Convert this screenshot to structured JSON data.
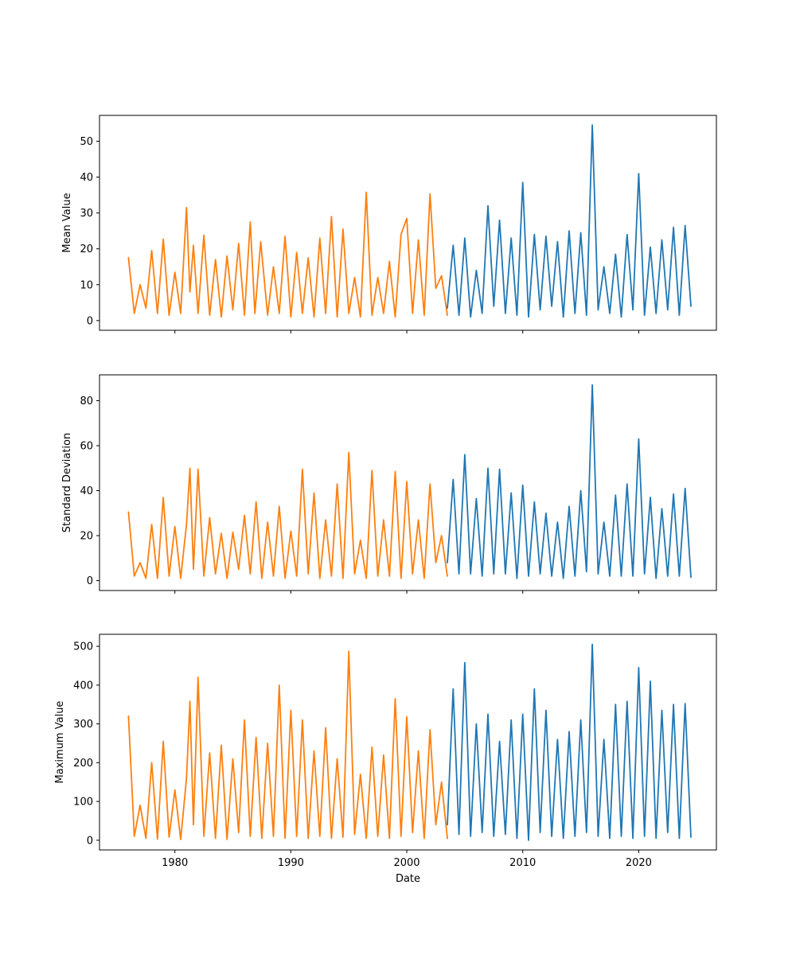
{
  "chart_data": [
    {
      "type": "line",
      "title": "",
      "xlabel": "",
      "ylabel": "Mean Value",
      "xlim": [
        1973.5,
        2026.7
      ],
      "ylim": [
        -2.7,
        57.2
      ],
      "x_ticks": [
        1980,
        1990,
        2000,
        2010,
        2020
      ],
      "x_tick_labels_shown": false,
      "y_ticks": [
        0,
        10,
        20,
        30,
        40,
        50
      ],
      "grid": false,
      "series": [
        {
          "color": "#ff7f0e",
          "x": [
            1976.0,
            1976.5,
            1977.0,
            1977.5,
            1978.0,
            1978.5,
            1979.0,
            1979.5,
            1980.0,
            1980.5,
            1981.0,
            1981.3,
            1981.6,
            1982.0,
            1982.5,
            1983.0,
            1983.5,
            1984.0,
            1984.5,
            1985.0,
            1985.5,
            1986.0,
            1986.5,
            1986.9,
            1987.4,
            1988.0,
            1988.5,
            1989.0,
            1989.5,
            1990.0,
            1990.5,
            1991.0,
            1991.5,
            1992.0,
            1992.5,
            1993.0,
            1993.5,
            1994.0,
            1994.5,
            1995.0,
            1995.5,
            1996.0,
            1996.5,
            1997.0,
            1997.5,
            1998.0,
            1998.5,
            1999.0,
            1999.5,
            2000.0,
            2000.5,
            2001.0,
            2001.5,
            2002.0,
            2002.5,
            2003.0,
            2003.5
          ],
          "y": [
            17.5,
            2.0,
            10.0,
            3.5,
            19.5,
            2.0,
            22.7,
            1.5,
            13.5,
            2.0,
            31.5,
            8.0,
            21.0,
            2.0,
            23.8,
            1.5,
            17.0,
            1.0,
            18.0,
            3.0,
            21.5,
            1.5,
            27.5,
            2.0,
            22.0,
            1.5,
            15.0,
            2.0,
            23.5,
            1.0,
            19.0,
            2.0,
            17.5,
            1.0,
            23.0,
            2.0,
            29.0,
            1.0,
            25.5,
            2.0,
            12.0,
            1.0,
            35.8,
            1.5,
            12.0,
            2.0,
            16.5,
            1.0,
            24.0,
            28.5,
            2.0,
            22.5,
            1.5,
            35.3,
            9.0,
            12.5,
            1.5
          ]
        },
        {
          "color": "#1f77b4",
          "x": [
            2003.5,
            2004.0,
            2004.5,
            2005.0,
            2005.5,
            2006.0,
            2006.5,
            2007.0,
            2007.5,
            2008.0,
            2008.5,
            2009.0,
            2009.5,
            2010.0,
            2010.5,
            2011.0,
            2011.5,
            2012.0,
            2012.5,
            2013.0,
            2013.5,
            2014.0,
            2014.5,
            2015.0,
            2015.5,
            2016.0,
            2016.5,
            2017.0,
            2017.5,
            2018.0,
            2018.5,
            2019.0,
            2019.5,
            2020.0,
            2020.5,
            2021.0,
            2021.5,
            2022.0,
            2022.5,
            2023.0,
            2023.5,
            2024.0,
            2024.5
          ],
          "y": [
            3.5,
            21.0,
            1.5,
            23.0,
            1.0,
            14.0,
            2.0,
            32.0,
            4.0,
            28.0,
            2.0,
            23.0,
            1.5,
            38.5,
            1.0,
            24.0,
            3.0,
            23.5,
            4.0,
            22.0,
            1.0,
            25.0,
            2.0,
            24.5,
            1.5,
            54.5,
            3.0,
            15.0,
            2.0,
            18.5,
            1.0,
            24.0,
            3.0,
            41.0,
            1.5,
            20.5,
            2.0,
            22.5,
            3.0,
            26.0,
            1.5,
            26.5,
            4.0
          ]
        }
      ]
    },
    {
      "type": "line",
      "title": "",
      "xlabel": "",
      "ylabel": "Standard Deviation",
      "xlim": [
        1973.5,
        2026.7
      ],
      "ylim": [
        -4.4,
        91.5
      ],
      "x_ticks": [
        1980,
        1990,
        2000,
        2010,
        2020
      ],
      "x_tick_labels_shown": false,
      "y_ticks": [
        0,
        20,
        40,
        60,
        80
      ],
      "grid": false,
      "series": [
        {
          "color": "#ff7f0e",
          "x": [
            1976.0,
            1976.5,
            1977.0,
            1977.5,
            1978.0,
            1978.5,
            1979.0,
            1979.5,
            1980.0,
            1980.5,
            1981.0,
            1981.3,
            1981.6,
            1982.0,
            1982.5,
            1983.0,
            1983.5,
            1984.0,
            1984.5,
            1985.0,
            1985.5,
            1986.0,
            1986.5,
            1987.0,
            1987.5,
            1988.0,
            1988.5,
            1989.0,
            1989.5,
            1990.0,
            1990.5,
            1991.0,
            1991.5,
            1992.0,
            1992.5,
            1993.0,
            1993.5,
            1994.0,
            1994.5,
            1995.0,
            1995.5,
            1996.0,
            1996.5,
            1997.0,
            1997.5,
            1998.0,
            1998.5,
            1999.0,
            1999.5,
            2000.0,
            2000.5,
            2001.0,
            2001.5,
            2002.0,
            2002.5,
            2003.0,
            2003.5
          ],
          "y": [
            30.5,
            2.0,
            8.0,
            1.0,
            25.0,
            1.0,
            37.0,
            2.0,
            24.0,
            1.0,
            25.0,
            50.0,
            5.0,
            49.5,
            2.0,
            28.0,
            3.0,
            21.0,
            1.0,
            21.5,
            5.0,
            29.0,
            3.0,
            35.0,
            1.0,
            26.0,
            2.0,
            33.0,
            1.0,
            22.0,
            2.0,
            49.5,
            3.0,
            39.0,
            1.0,
            27.0,
            2.0,
            43.0,
            1.0,
            57.0,
            3.0,
            18.0,
            1.0,
            49.0,
            2.0,
            27.0,
            2.0,
            48.5,
            1.0,
            44.0,
            3.0,
            27.0,
            1.0,
            43.0,
            8.0,
            20.0,
            2.0
          ]
        },
        {
          "color": "#1f77b4",
          "x": [
            2003.5,
            2004.0,
            2004.5,
            2005.0,
            2005.5,
            2006.0,
            2006.5,
            2007.0,
            2007.5,
            2008.0,
            2008.5,
            2009.0,
            2009.5,
            2010.0,
            2010.5,
            2011.0,
            2011.5,
            2012.0,
            2012.5,
            2013.0,
            2013.5,
            2014.0,
            2014.5,
            2015.0,
            2015.5,
            2016.0,
            2016.5,
            2017.0,
            2017.5,
            2018.0,
            2018.5,
            2019.0,
            2019.5,
            2020.0,
            2020.5,
            2021.0,
            2021.5,
            2022.0,
            2022.5,
            2023.0,
            2023.5,
            2024.0,
            2024.5
          ],
          "y": [
            8.0,
            45.0,
            3.0,
            56.0,
            3.0,
            36.5,
            2.0,
            50.0,
            3.0,
            49.5,
            3.0,
            39.0,
            1.0,
            42.5,
            2.0,
            35.0,
            3.0,
            30.0,
            2.0,
            26.0,
            1.0,
            33.0,
            2.0,
            40.0,
            4.0,
            87.0,
            3.0,
            26.0,
            2.0,
            38.0,
            2.0,
            43.0,
            2.0,
            63.0,
            3.0,
            37.0,
            1.0,
            32.0,
            2.0,
            38.5,
            2.0,
            41.0,
            1.5
          ]
        }
      ]
    },
    {
      "type": "line",
      "title": "",
      "xlabel": "Date",
      "ylabel": "Maximum Value",
      "xlim": [
        1973.5,
        2026.7
      ],
      "ylim": [
        -25,
        531
      ],
      "x_ticks": [
        1980,
        1990,
        2000,
        2010,
        2020
      ],
      "x_tick_labels_shown": true,
      "y_ticks": [
        0,
        100,
        200,
        300,
        400,
        500
      ],
      "grid": false,
      "series": [
        {
          "color": "#ff7f0e",
          "x": [
            1976.0,
            1976.5,
            1977.0,
            1977.5,
            1978.0,
            1978.5,
            1979.0,
            1979.5,
            1980.0,
            1980.5,
            1981.0,
            1981.3,
            1981.6,
            1982.0,
            1982.5,
            1983.0,
            1983.5,
            1984.0,
            1984.5,
            1985.0,
            1985.5,
            1986.0,
            1986.5,
            1987.0,
            1987.5,
            1988.0,
            1988.5,
            1989.0,
            1989.5,
            1990.0,
            1990.5,
            1991.0,
            1991.5,
            1992.0,
            1992.5,
            1993.0,
            1993.5,
            1994.0,
            1994.5,
            1995.0,
            1995.5,
            1996.0,
            1996.5,
            1997.0,
            1997.5,
            1998.0,
            1998.5,
            1999.0,
            1999.5,
            2000.0,
            2000.5,
            2001.0,
            2001.5,
            2002.0,
            2002.5,
            2003.0,
            2003.5
          ],
          "y": [
            320,
            10,
            90,
            5,
            200,
            3,
            255,
            8,
            130,
            2,
            160,
            358,
            40,
            420,
            10,
            225,
            5,
            245,
            2,
            210,
            20,
            310,
            10,
            265,
            5,
            250,
            10,
            400,
            5,
            335,
            10,
            310,
            5,
            230,
            10,
            290,
            5,
            210,
            8,
            487,
            15,
            170,
            5,
            240,
            10,
            220,
            5,
            365,
            10,
            318,
            20,
            230,
            5,
            285,
            40,
            150,
            5
          ]
        },
        {
          "color": "#1f77b4",
          "x": [
            2003.5,
            2004.0,
            2004.5,
            2005.0,
            2005.5,
            2006.0,
            2006.5,
            2007.0,
            2007.5,
            2008.0,
            2008.5,
            2009.0,
            2009.5,
            2010.0,
            2010.5,
            2011.0,
            2011.5,
            2012.0,
            2012.5,
            2013.0,
            2013.5,
            2014.0,
            2014.5,
            2015.0,
            2015.5,
            2016.0,
            2016.5,
            2017.0,
            2017.5,
            2018.0,
            2018.5,
            2019.0,
            2019.5,
            2020.0,
            2020.5,
            2021.0,
            2021.5,
            2022.0,
            2022.5,
            2023.0,
            2023.5,
            2024.0,
            2024.5
          ],
          "y": [
            40,
            390,
            15,
            458,
            10,
            300,
            20,
            325,
            10,
            255,
            15,
            310,
            5,
            325,
            0,
            390,
            20,
            335,
            10,
            260,
            5,
            280,
            10,
            310,
            20,
            505,
            10,
            260,
            5,
            350,
            10,
            358,
            5,
            445,
            10,
            410,
            5,
            335,
            20,
            350,
            5,
            352,
            8
          ]
        }
      ]
    }
  ]
}
